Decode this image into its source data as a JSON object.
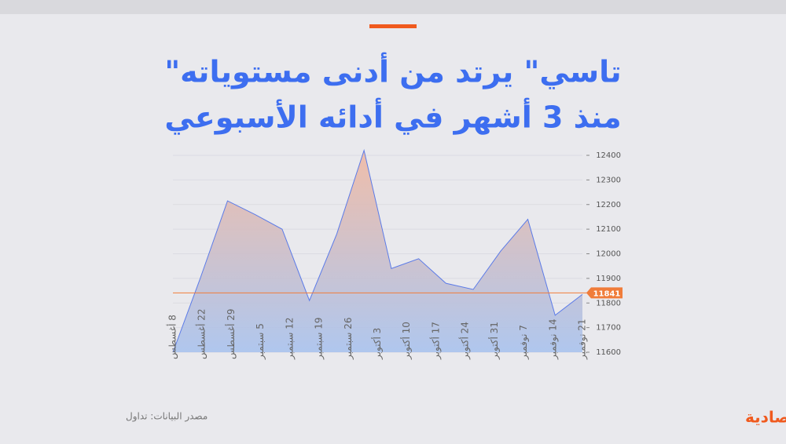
{
  "chart_data": {
    "type": "area",
    "title_lines": [
      "\"تاسي\" يرتد من أدنى مستوياته",
      "منذ 3 أشهر في أدائه الأسبوعي"
    ],
    "xticks": [
      "8 أغسطس",
      "22 أغسطس",
      "29 أغسطس",
      "5 سبتمبر",
      "12 سبتمبر",
      "19 سبتمبر",
      "26 سبتمبر",
      "3 أكتوبر",
      "10 أكتوبر",
      "17 أكتوبر",
      "24 أكتوبر",
      "31 أكتوبر",
      "7 نوفمبر",
      "14 نوفمبر",
      "21 نوفمبر"
    ],
    "values": [
      11600,
      11900,
      12215,
      12160,
      12100,
      11810,
      12080,
      12420,
      11940,
      11980,
      11880,
      11855,
      12010,
      12140,
      11750,
      11835
    ],
    "color": "#5b7be8",
    "reference_line": {
      "value": 11841,
      "label": "11841",
      "color": "#f07c3a"
    },
    "ylim": [
      11600,
      12400
    ],
    "yticks": [
      11600,
      11700,
      11800,
      11900,
      12000,
      12100,
      12200,
      12300,
      12400
    ],
    "grid": true,
    "source": "مصدر البيانات: تداول",
    "brand": "الاقتصادية"
  }
}
